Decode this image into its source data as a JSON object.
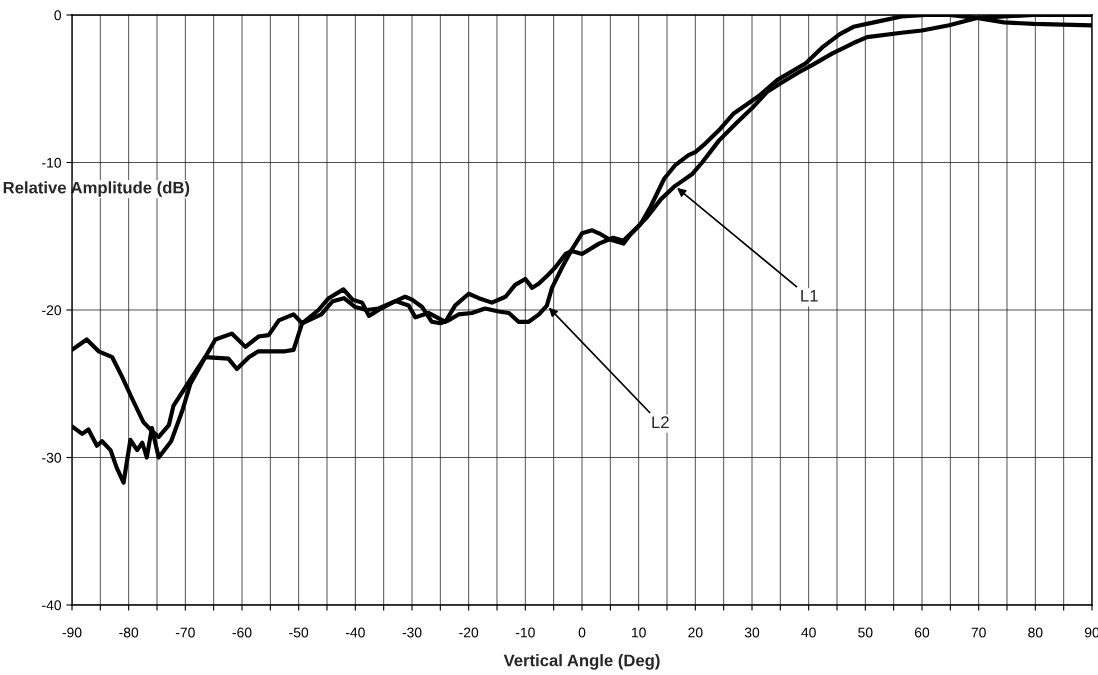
{
  "chart_data": {
    "type": "line",
    "xlabel": "Vertical Angle (Deg)",
    "ylabel": "Relative Amplitude (dB)",
    "xlim": [
      -90,
      90
    ],
    "ylim": [
      -40,
      0
    ],
    "xticks": [
      -90,
      {
        "value": -85,
        "label": null
      },
      -80,
      {
        "value": -75,
        "label": null
      },
      -70,
      {
        "value": -65,
        "label": null
      },
      -60,
      {
        "value": -55,
        "label": null
      },
      -50,
      {
        "value": -45,
        "label": null
      },
      -40,
      {
        "value": -35,
        "label": null
      },
      -30,
      {
        "value": -25,
        "label": null
      },
      -20,
      {
        "value": -15,
        "label": null
      },
      -10,
      {
        "value": -5,
        "label": null
      },
      0,
      {
        "value": 5,
        "label": null
      },
      10,
      {
        "value": 15,
        "label": null
      },
      20,
      {
        "value": 25,
        "label": null
      },
      30,
      {
        "value": 35,
        "label": null
      },
      40,
      {
        "value": 45,
        "label": null
      },
      50,
      {
        "value": 55,
        "label": null
      },
      60,
      {
        "value": 65,
        "label": null
      },
      70,
      {
        "value": 75,
        "label": null
      },
      80,
      {
        "value": 85,
        "label": null
      },
      90
    ],
    "yticks": [
      -40,
      -30,
      -20,
      -10,
      0
    ],
    "grid": true,
    "marker": "none",
    "line_style": "solid",
    "series": [
      {
        "color": "#000000",
        "x": [
          -90,
          -87.4,
          -85.3,
          -82.9,
          -81.2,
          -79.4,
          -77.4,
          -75.9,
          -74.7,
          -72.9,
          -72.1,
          -70.6,
          -69.1,
          -66.5,
          -64.7,
          -61.8,
          -59.4,
          -57.1,
          -55.3,
          -53.5,
          -50.9,
          -49.4,
          -46.5,
          -44.7,
          -42.1,
          -40.5,
          -38.8,
          -37.6,
          -35.9,
          -33.5,
          -31.2,
          -30.0,
          -28.2,
          -26.5,
          -25.0,
          -23.5,
          -21.8,
          -19.4,
          -17.1,
          -14.7,
          -12.9,
          -11.2,
          -9.4,
          -7.6,
          -6.2,
          -5.3,
          -3.5,
          -1.8,
          0,
          1.8,
          3.0,
          4.8,
          7.3,
          8.5,
          10.3,
          12.1,
          14.5,
          16.4,
          18.8,
          20,
          21.8,
          24.2,
          26.7,
          29.7,
          31.5,
          34.5,
          37.6,
          39.4,
          42.4,
          45.5,
          47.9,
          51.5,
          56.4,
          60.6,
          64.8,
          69.7,
          74.5,
          79.7,
          90
        ],
        "values": [
          -22.7,
          -22.0,
          -22.8,
          -23.2,
          -24.5,
          -26.0,
          -27.6,
          -28.2,
          -28.6,
          -27.8,
          -26.5,
          -25.6,
          -24.7,
          -23.2,
          -22.0,
          -21.6,
          -22.5,
          -21.8,
          -21.7,
          -20.7,
          -20.3,
          -20.9,
          -20.0,
          -19.2,
          -18.6,
          -19.3,
          -19.5,
          -20.4,
          -20.0,
          -19.5,
          -19.1,
          -19.3,
          -19.8,
          -20.8,
          -20.9,
          -20.7,
          -20.3,
          -20.2,
          -19.9,
          -20.1,
          -20.2,
          -20.8,
          -20.8,
          -20.3,
          -19.7,
          -18.5,
          -17.1,
          -15.9,
          -14.8,
          -14.6,
          -14.8,
          -15.2,
          -15.5,
          -14.9,
          -14.2,
          -13.0,
          -11.1,
          -10.2,
          -9.5,
          -9.3,
          -8.7,
          -7.8,
          -6.7,
          -5.9,
          -5.4,
          -4.4,
          -3.7,
          -3.3,
          -2.2,
          -1.3,
          -0.8,
          -0.5,
          -0.1,
          0,
          0,
          -0.2,
          -0.5,
          -0.6,
          -0.7
        ]
      },
      {
        "color": "#000000",
        "x": [
          -90,
          -88.2,
          -87.1,
          -85.6,
          -84.7,
          -83.2,
          -82.1,
          -80.9,
          -79.7,
          -78.5,
          -77.6,
          -76.8,
          -75.9,
          -74.7,
          -72.5,
          -70.6,
          -69.1,
          -66.5,
          -62.4,
          -60.9,
          -58.8,
          -57.1,
          -52.4,
          -50.9,
          -49.4,
          -46,
          -44,
          -42,
          -40,
          -38,
          -35.9,
          -32.9,
          -30.6,
          -29.4,
          -27.1,
          -24.1,
          -22.4,
          -20,
          -18.2,
          -15.9,
          -13.5,
          -11.8,
          -10,
          -8.8,
          -7.6,
          -6.2,
          -4.7,
          -2.9,
          -1.8,
          0,
          3.0,
          5.5,
          7.3,
          9.7,
          11.5,
          13.9,
          16.4,
          19.4,
          21.2,
          24.2,
          27.3,
          30.3,
          32.7,
          35.2,
          38.2,
          40.6,
          44.2,
          47.9,
          50.3,
          56.4,
          60,
          64.8,
          69.7,
          74.5,
          79.7,
          90
        ],
        "values": [
          -27.9,
          -28.4,
          -28.1,
          -29.2,
          -28.9,
          -29.5,
          -30.7,
          -31.7,
          -28.8,
          -29.5,
          -29.0,
          -30.0,
          -28.0,
          -30.0,
          -28.9,
          -26.9,
          -25.0,
          -23.2,
          -23.3,
          -24.0,
          -23.2,
          -22.8,
          -22.8,
          -22.7,
          -20.9,
          -20.3,
          -19.4,
          -19.2,
          -19.8,
          -20.0,
          -19.9,
          -19.4,
          -19.7,
          -20.5,
          -20.2,
          -20.8,
          -19.7,
          -18.9,
          -19.2,
          -19.5,
          -19.1,
          -18.3,
          -17.9,
          -18.5,
          -18.2,
          -17.7,
          -17.1,
          -16.2,
          -16.0,
          -16.2,
          -15.5,
          -15.1,
          -15.3,
          -14.4,
          -13.7,
          -12.5,
          -11.6,
          -10.8,
          -10.0,
          -8.5,
          -7.3,
          -6.2,
          -5.2,
          -4.6,
          -3.9,
          -3.4,
          -2.6,
          -1.9,
          -1.5,
          -1.2,
          -1.05,
          -0.7,
          -0.2,
          -0.1,
          0,
          0
        ]
      }
    ],
    "annotations": [
      {
        "text": "L1",
        "x": 16.4,
        "y": -11.6
      },
      {
        "text": "L2",
        "x": -6.2,
        "y": -19.7
      }
    ]
  }
}
